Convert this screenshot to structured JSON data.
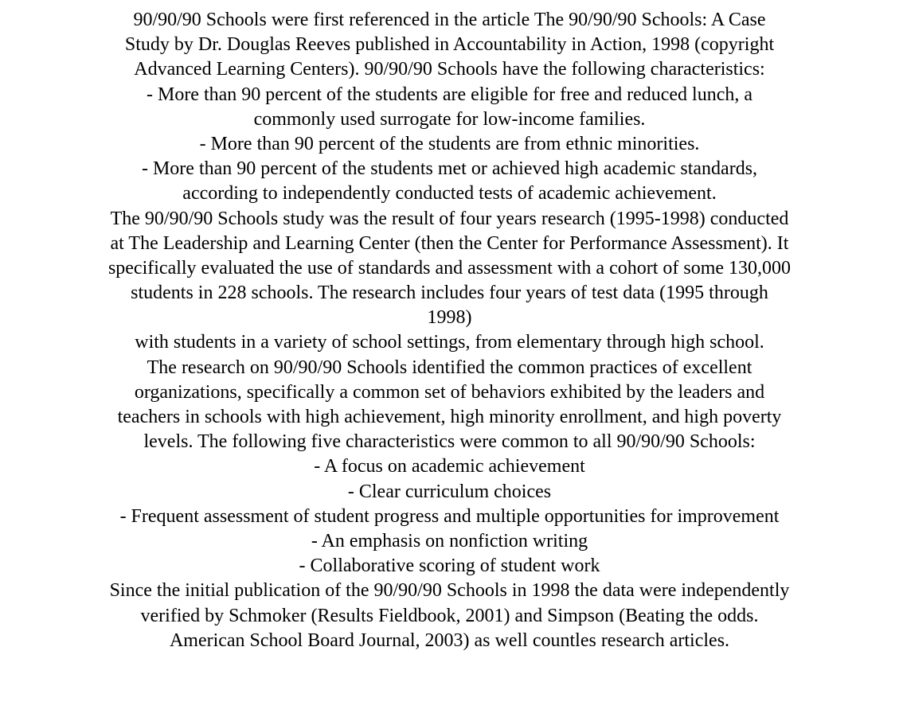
{
  "fontFamily": "Georgia, 'Times New Roman', Times, serif",
  "textColor": "#000000",
  "backgroundColor": "#ffffff",
  "fontSize": "24px",
  "lines": {
    "l1": "90/90/90 Schools were first referenced in the article The 90/90/90 Schools: A Case",
    "l2": "Study by Dr. Douglas Reeves published in Accountability in Action, 1998 (copyright",
    "l3": "Advanced Learning Centers).  90/90/90 Schools have the following characteristics:",
    "l4": "- More than 90 percent of the students are eligible for free and reduced lunch, a",
    "l5": "commonly used surrogate for low-income families.",
    "l6": "- More than 90 percent of the students are from ethnic minorities.",
    "l7": "- More than 90 percent of the students met or achieved high academic standards,",
    "l8": "according to independently conducted tests of academic achievement.",
    "l9": "The 90/90/90 Schools study was the result of four years research (1995-1998) conducted",
    "l10": "at The Leadership and Learning Center (then the Center for Performance Assessment).  It",
    "l11": "specifically evaluated the use of standards and assessment with a cohort of some 130,000",
    "l12": "students in 228 schools. The research includes four years of test data (1995 through",
    "l13": "1998)",
    "l14": "with students in a variety of school settings, from elementary through high school.",
    "l15": "The research on 90/90/90 Schools identified the common practices of excellent",
    "l16": "organizations, specifically a common set of behaviors exhibited by the leaders and",
    "l17": "teachers in schools with high achievement, high minority enrollment, and high poverty",
    "l18": "levels. The following five characteristics were common to all 90/90/90 Schools:",
    "l19": "- A focus on academic achievement",
    "l20": "- Clear curriculum choices",
    "l21": "- Frequent assessment of student progress and multiple opportunities for improvement",
    "l22": "- An emphasis on nonfiction writing",
    "l23": "- Collaborative scoring of student work",
    "l24": "Since the initial publication of the 90/90/90 Schools in 1998 the data were independently",
    "l25": "verified by Schmoker (Results Fieldbook, 2001) and Simpson (Beating the odds.",
    "l26": "American School Board Journal, 2003) as well countles research articles."
  }
}
